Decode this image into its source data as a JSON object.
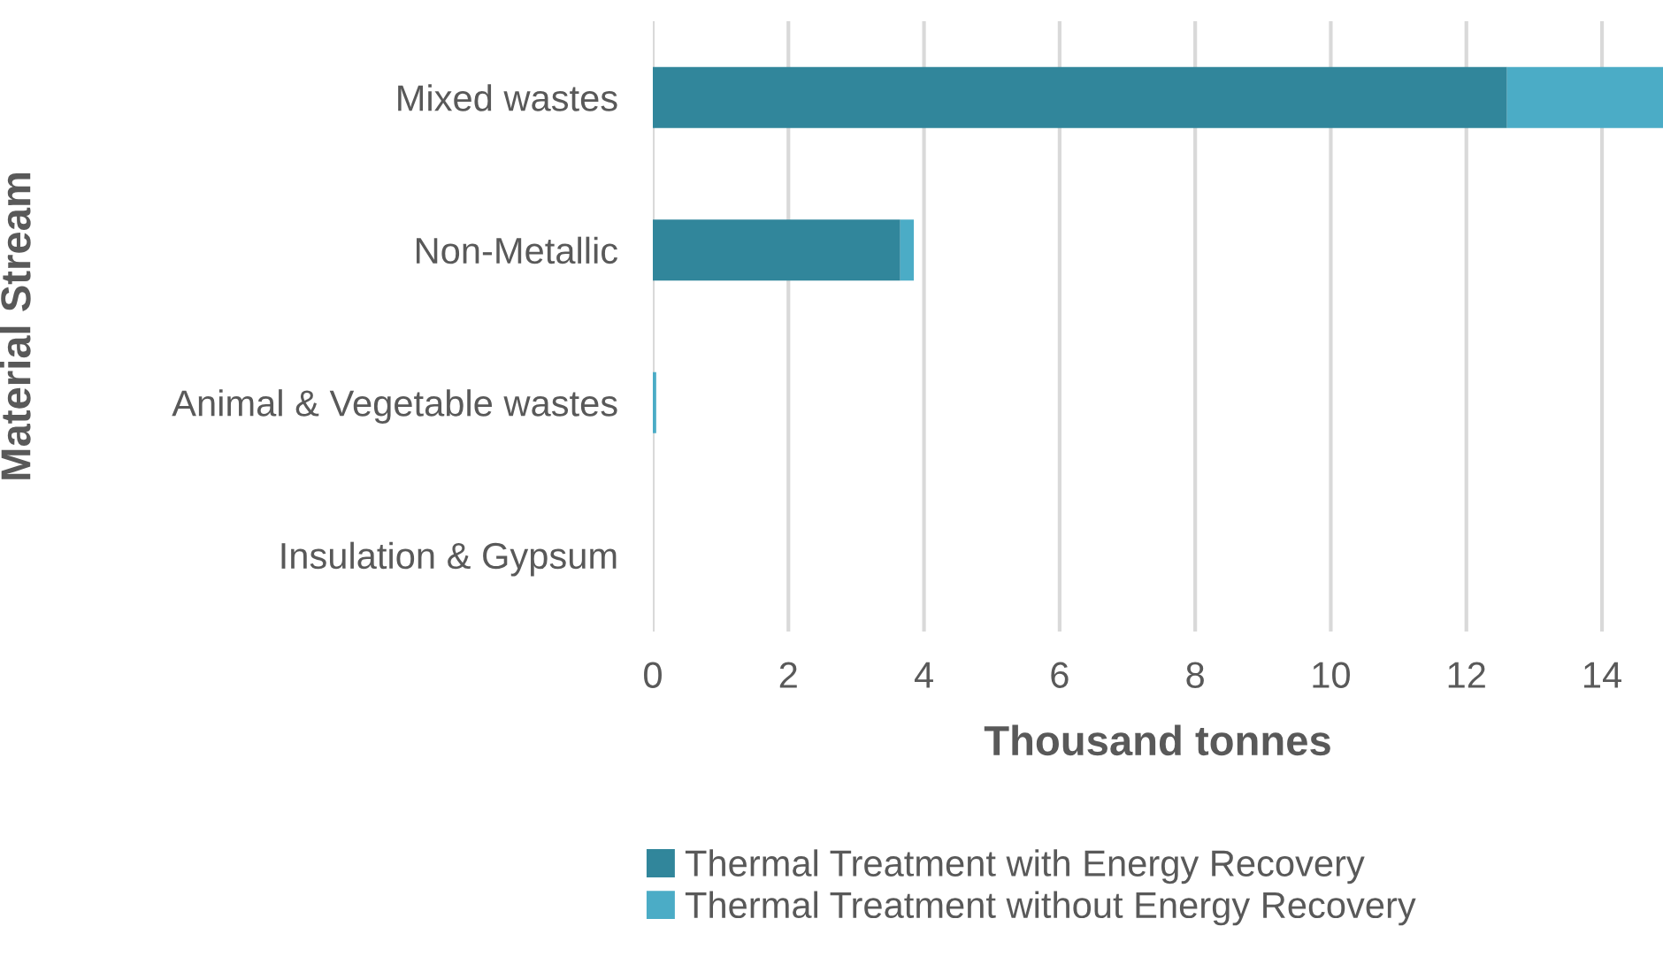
{
  "chart_data": {
    "type": "bar",
    "orientation": "horizontal",
    "stacked": true,
    "xlabel": "Thousand tonnes",
    "ylabel": "Material Stream",
    "categories": [
      "Mixed wastes",
      "Non-Metallic",
      "Animal & Vegetable wastes",
      "Insulation & Gypsum"
    ],
    "series": [
      {
        "name": "Thermal Treatment with Energy Recovery",
        "color": "#31869b",
        "values": [
          12.6,
          3.65,
          0,
          0
        ]
      },
      {
        "name": "Thermal Treatment without Energy Recovery",
        "color": "#4bacc6",
        "values": [
          2.3,
          0.2,
          0.05,
          0
        ]
      }
    ],
    "xlim": [
      0,
      14.9
    ],
    "xticks": [
      0,
      2,
      4,
      6,
      8,
      10,
      12,
      14
    ],
    "grid": "x",
    "legend": "bottom"
  }
}
